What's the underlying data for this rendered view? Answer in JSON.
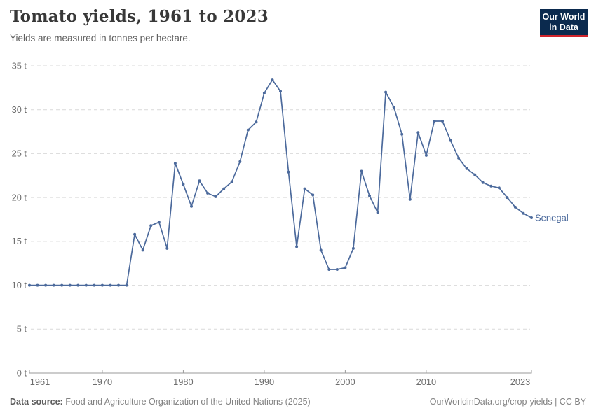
{
  "header": {
    "title": "Tomato yields, 1961 to 2023",
    "subtitle": "Yields are measured in tonnes per hectare."
  },
  "logo": {
    "line1": "Our World",
    "line2": "in Data",
    "bg_color": "#0b2a4e",
    "accent_color": "#d0242c"
  },
  "chart_data": {
    "type": "line",
    "title": "Tomato yields, 1961 to 2023",
    "xlabel": "",
    "ylabel": "tonnes per hectare",
    "xlim": [
      1961,
      2023
    ],
    "ylim": [
      0,
      35
    ],
    "grid": "horizontal-dashed",
    "legend_position": "end-of-line-label",
    "x_ticks": [
      1961,
      1970,
      1980,
      1990,
      2000,
      2010,
      2023
    ],
    "y_ticks": [
      0,
      5,
      10,
      15,
      20,
      25,
      30,
      35
    ],
    "y_tick_suffix": " t",
    "series": [
      {
        "name": "Senegal",
        "color": "#4C6A9C",
        "x": [
          1961,
          1962,
          1963,
          1964,
          1965,
          1966,
          1967,
          1968,
          1969,
          1970,
          1971,
          1972,
          1973,
          1974,
          1975,
          1976,
          1977,
          1978,
          1979,
          1980,
          1981,
          1982,
          1983,
          1984,
          1985,
          1986,
          1987,
          1988,
          1989,
          1990,
          1991,
          1992,
          1993,
          1994,
          1995,
          1996,
          1997,
          1998,
          1999,
          2000,
          2001,
          2002,
          2003,
          2004,
          2005,
          2006,
          2007,
          2008,
          2009,
          2010,
          2011,
          2012,
          2013,
          2014,
          2015,
          2016,
          2017,
          2018,
          2019,
          2020,
          2021,
          2022,
          2023
        ],
        "values": [
          10,
          10,
          10,
          10,
          10,
          10,
          10,
          10,
          10,
          10,
          10,
          10,
          10,
          15.8,
          14,
          16.8,
          17.2,
          14.2,
          23.9,
          21.5,
          19,
          21.9,
          20.5,
          20.1,
          21,
          21.8,
          24.1,
          27.7,
          28.6,
          31.9,
          33.4,
          32.1,
          22.9,
          14.4,
          21,
          20.3,
          14,
          11.8,
          11.8,
          12,
          14.2,
          23,
          20.2,
          18.3,
          32,
          30.3,
          27.2,
          19.8,
          27.4,
          24.8,
          28.7,
          28.7,
          26.5,
          24.5,
          23.3,
          22.6,
          21.7,
          21.3,
          21.1,
          20,
          18.9,
          18.2,
          17.7
        ]
      }
    ]
  },
  "footer": {
    "source_label": "Data source:",
    "source_text": " Food and Agriculture Organization of the United Nations (2025)",
    "link": "OurWorldinData.org/crop-yields",
    "license_suffix": " | CC BY"
  }
}
